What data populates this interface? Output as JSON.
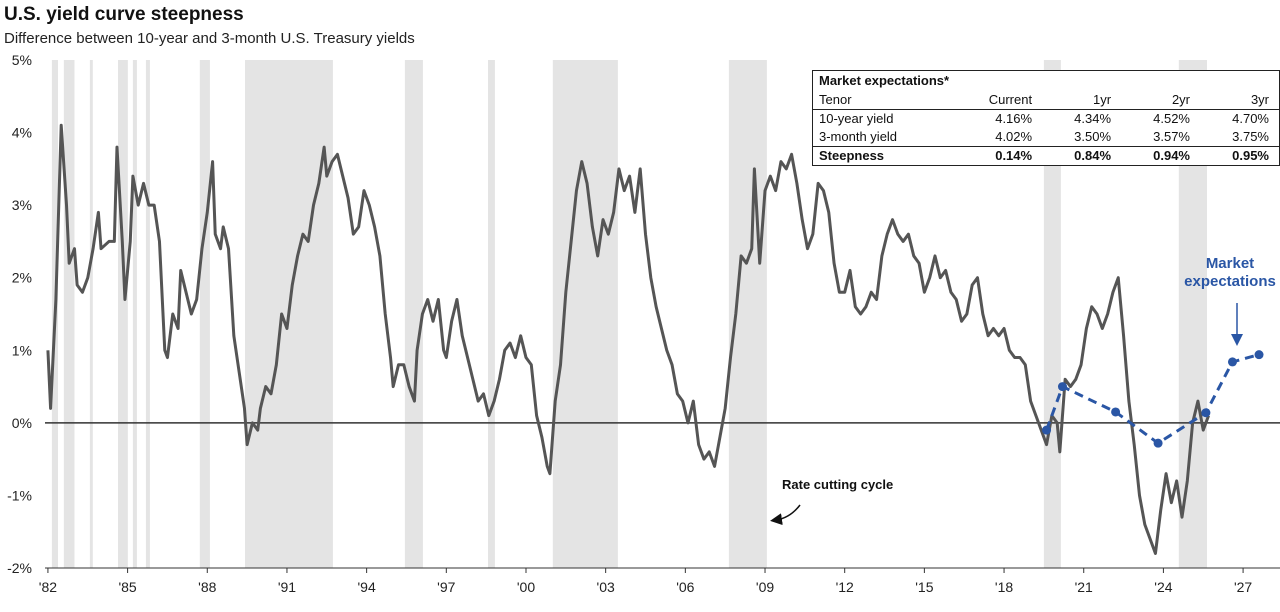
{
  "chart_data": {
    "type": "line",
    "title": "U.S. yield curve steepness",
    "subtitle": "Difference between 10-year and 3-month U.S. Treasury yields",
    "xlim": [
      1981.89,
      2028.39
    ],
    "xticks": [
      {
        "value": 1982,
        "label": "'82"
      },
      {
        "value": 1985,
        "label": "'85"
      },
      {
        "value": 1988,
        "label": "'88"
      },
      {
        "value": 1991,
        "label": "'91"
      },
      {
        "value": 1994,
        "label": "'94"
      },
      {
        "value": 1997,
        "label": "'97"
      },
      {
        "value": 2000,
        "label": "'00"
      },
      {
        "value": 2003,
        "label": "'03"
      },
      {
        "value": 2006,
        "label": "'06"
      },
      {
        "value": 2009,
        "label": "'09"
      },
      {
        "value": 2012,
        "label": "'12"
      },
      {
        "value": 2015,
        "label": "'15"
      },
      {
        "value": 2018,
        "label": "'18"
      },
      {
        "value": 2021,
        "label": "'21"
      },
      {
        "value": 2024,
        "label": "'24"
      },
      {
        "value": 2027,
        "label": "'27"
      }
    ],
    "ylim": [
      -2,
      5
    ],
    "yticks": [
      {
        "value": 5,
        "label": "5%"
      },
      {
        "value": 4,
        "label": "4%"
      },
      {
        "value": 3,
        "label": "3%"
      },
      {
        "value": 2,
        "label": "2%"
      },
      {
        "value": 1,
        "label": "1%"
      },
      {
        "value": 0,
        "label": "0%"
      },
      {
        "value": -1,
        "label": "-1%"
      },
      {
        "value": -2,
        "label": "-2%"
      }
    ],
    "zero_line": true,
    "shaded_regions_label": "Rate cutting cycle",
    "shaded_regions_color": "#e4e4e4",
    "shaded_regions": [
      [
        1982.15,
        1982.38
      ],
      [
        1982.6,
        1983.0
      ],
      [
        1983.58,
        1983.69
      ],
      [
        1984.64,
        1985.01
      ],
      [
        1985.2,
        1985.35
      ],
      [
        1985.69,
        1985.84
      ],
      [
        1987.72,
        1988.1
      ],
      [
        1989.42,
        1992.73
      ],
      [
        1995.44,
        1996.12
      ],
      [
        1998.57,
        1998.83
      ],
      [
        2001.01,
        2003.46
      ],
      [
        2007.64,
        2009.07
      ],
      [
        2019.5,
        2020.14
      ],
      [
        2024.58,
        2025.64
      ]
    ],
    "series": [
      {
        "color": "#555555",
        "dashed": false,
        "markers": false,
        "x": [
          1982.0,
          1982.1,
          1982.3,
          1982.5,
          1982.7,
          1982.8,
          1983.0,
          1983.1,
          1983.3,
          1983.5,
          1983.7,
          1983.9,
          1984.0,
          1984.3,
          1984.5,
          1984.6,
          1984.8,
          1984.9,
          1985.1,
          1985.2,
          1985.4,
          1985.6,
          1985.8,
          1986.0,
          1986.2,
          1986.4,
          1986.5,
          1986.7,
          1986.9,
          1987.0,
          1987.2,
          1987.4,
          1987.6,
          1987.8,
          1988.0,
          1988.2,
          1988.3,
          1988.5,
          1988.6,
          1988.8,
          1989.0,
          1989.2,
          1989.4,
          1989.5,
          1989.7,
          1989.9,
          1990.0,
          1990.2,
          1990.4,
          1990.6,
          1990.8,
          1991.0,
          1991.2,
          1991.4,
          1991.6,
          1991.8,
          1992.0,
          1992.2,
          1992.4,
          1992.5,
          1992.7,
          1992.9,
          1993.1,
          1993.3,
          1993.5,
          1993.7,
          1993.9,
          1994.1,
          1994.3,
          1994.5,
          1994.7,
          1994.9,
          1995.0,
          1995.2,
          1995.4,
          1995.6,
          1995.8,
          1995.9,
          1996.1,
          1996.3,
          1996.5,
          1996.7,
          1996.9,
          1997.0,
          1997.2,
          1997.4,
          1997.6,
          1997.8,
          1998.0,
          1998.2,
          1998.4,
          1998.6,
          1998.8,
          1999.0,
          1999.2,
          1999.4,
          1999.6,
          1999.8,
          2000.0,
          2000.2,
          2000.4,
          2000.6,
          2000.8,
          2000.9,
          2001.1,
          2001.3,
          2001.5,
          2001.7,
          2001.9,
          2002.1,
          2002.3,
          2002.5,
          2002.7,
          2002.9,
          2003.1,
          2003.3,
          2003.5,
          2003.7,
          2003.9,
          2004.1,
          2004.3,
          2004.5,
          2004.7,
          2004.9,
          2005.1,
          2005.3,
          2005.5,
          2005.7,
          2005.9,
          2006.1,
          2006.3,
          2006.5,
          2006.7,
          2006.9,
          2007.1,
          2007.3,
          2007.5,
          2007.7,
          2007.9,
          2008.1,
          2008.3,
          2008.5,
          2008.6,
          2008.8,
          2009.0,
          2009.2,
          2009.4,
          2009.6,
          2009.8,
          2010.0,
          2010.2,
          2010.4,
          2010.6,
          2010.8,
          2011.0,
          2011.2,
          2011.4,
          2011.6,
          2011.8,
          2012.0,
          2012.2,
          2012.4,
          2012.6,
          2012.8,
          2013.0,
          2013.2,
          2013.4,
          2013.6,
          2013.8,
          2014.0,
          2014.2,
          2014.4,
          2014.6,
          2014.8,
          2015.0,
          2015.2,
          2015.4,
          2015.6,
          2015.8,
          2016.0,
          2016.2,
          2016.4,
          2016.6,
          2016.8,
          2017.0,
          2017.2,
          2017.4,
          2017.6,
          2017.8,
          2018.0,
          2018.2,
          2018.4,
          2018.6,
          2018.8,
          2019.0,
          2019.2,
          2019.4,
          2019.6,
          2019.8,
          2020.0,
          2020.1,
          2020.3,
          2020.5,
          2020.7,
          2020.9,
          2021.1,
          2021.3,
          2021.5,
          2021.7,
          2021.9,
          2022.1,
          2022.3,
          2022.5,
          2022.7,
          2022.9,
          2023.1,
          2023.3,
          2023.5,
          2023.7,
          2023.9,
          2024.1,
          2024.3,
          2024.5,
          2024.7,
          2024.9,
          2025.1,
          2025.3,
          2025.5,
          2025.7
        ],
        "values": [
          1.0,
          0.2,
          1.7,
          4.1,
          3.0,
          2.2,
          2.4,
          1.9,
          1.8,
          2.0,
          2.4,
          2.9,
          2.4,
          2.5,
          2.5,
          3.8,
          2.5,
          1.7,
          2.5,
          3.4,
          3.0,
          3.3,
          3.0,
          3.0,
          2.5,
          1.0,
          0.9,
          1.5,
          1.3,
          2.1,
          1.8,
          1.5,
          1.7,
          2.4,
          2.9,
          3.6,
          2.6,
          2.4,
          2.7,
          2.4,
          1.2,
          0.7,
          0.2,
          -0.3,
          0.0,
          -0.1,
          0.2,
          0.5,
          0.4,
          0.8,
          1.5,
          1.3,
          1.9,
          2.3,
          2.6,
          2.5,
          3.0,
          3.3,
          3.8,
          3.4,
          3.6,
          3.7,
          3.4,
          3.1,
          2.6,
          2.7,
          3.2,
          3.0,
          2.7,
          2.3,
          1.5,
          0.9,
          0.5,
          0.8,
          0.8,
          0.5,
          0.3,
          1.0,
          1.5,
          1.7,
          1.4,
          1.7,
          1.0,
          0.9,
          1.4,
          1.7,
          1.2,
          0.9,
          0.6,
          0.3,
          0.4,
          0.1,
          0.3,
          0.6,
          1.0,
          1.1,
          0.9,
          1.2,
          0.9,
          0.8,
          0.1,
          -0.2,
          -0.6,
          -0.7,
          0.3,
          0.8,
          1.8,
          2.5,
          3.2,
          3.6,
          3.3,
          2.7,
          2.3,
          2.8,
          2.6,
          2.9,
          3.5,
          3.2,
          3.4,
          2.9,
          3.5,
          2.6,
          2.0,
          1.6,
          1.3,
          1.0,
          0.8,
          0.4,
          0.3,
          0.0,
          0.3,
          -0.3,
          -0.5,
          -0.4,
          -0.6,
          -0.2,
          0.2,
          0.9,
          1.5,
          2.3,
          2.2,
          2.4,
          3.5,
          2.2,
          3.2,
          3.4,
          3.2,
          3.6,
          3.5,
          3.7,
          3.3,
          2.8,
          2.4,
          2.6,
          3.3,
          3.2,
          2.9,
          2.2,
          1.8,
          1.8,
          2.1,
          1.6,
          1.5,
          1.6,
          1.8,
          1.7,
          2.3,
          2.6,
          2.8,
          2.6,
          2.5,
          2.6,
          2.3,
          2.2,
          1.8,
          2.0,
          2.3,
          2.0,
          2.1,
          1.8,
          1.7,
          1.4,
          1.5,
          1.9,
          2.0,
          1.5,
          1.2,
          1.3,
          1.2,
          1.3,
          1.0,
          0.9,
          0.9,
          0.8,
          0.3,
          0.1,
          -0.1,
          -0.3,
          0.1,
          0.0,
          -0.4,
          0.6,
          0.5,
          0.6,
          0.8,
          1.3,
          1.6,
          1.5,
          1.3,
          1.5,
          1.8,
          2.0,
          1.2,
          0.3,
          -0.3,
          -1.0,
          -1.4,
          -1.6,
          -1.8,
          -1.2,
          -0.7,
          -1.1,
          -0.8,
          -1.3,
          -0.8,
          0.0,
          0.3,
          -0.1,
          0.1
        ]
      },
      {
        "name": "Market expectations",
        "color": "#2a56a5",
        "dashed": true,
        "markers": true,
        "x": [
          2019.6,
          2020.2,
          2022.2,
          2023.8,
          2025.6,
          2026.6,
          2027.6
        ],
        "values": [
          -0.1,
          0.5,
          0.15,
          -0.28,
          0.14,
          0.84,
          0.94
        ]
      }
    ],
    "table": {
      "title": "Market expectations*",
      "header": [
        "Tenor",
        "Current",
        "1yr",
        "2yr",
        "3yr"
      ],
      "rows": [
        [
          "10-year yield",
          "4.16%",
          "4.34%",
          "4.52%",
          "4.70%"
        ],
        [
          "3-month yield",
          "4.02%",
          "3.50%",
          "3.57%",
          "3.75%"
        ],
        [
          "Steepness",
          "0.14%",
          "0.84%",
          "0.94%",
          "0.95%"
        ]
      ]
    }
  }
}
